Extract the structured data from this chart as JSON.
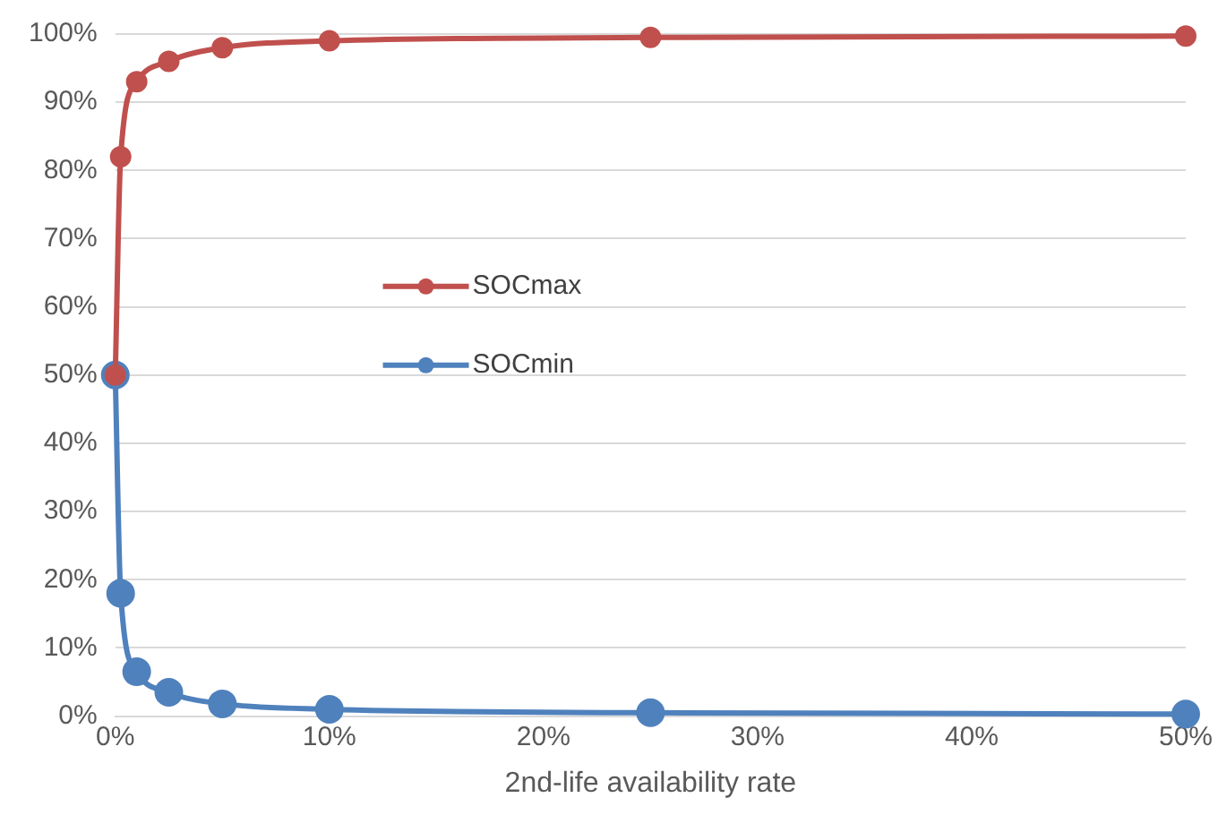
{
  "chart_data": {
    "type": "line",
    "xlabel": "2nd-life availability rate",
    "x": [
      0,
      0.25,
      1,
      2.5,
      5,
      10,
      25,
      50
    ],
    "series": [
      {
        "name": "SOCmax",
        "color": "#c0504d",
        "values": [
          50,
          82,
          93,
          96,
          98,
          99,
          99.5,
          99.7
        ]
      },
      {
        "name": "SOCmin",
        "color": "#4f81bd",
        "values": [
          50,
          18,
          6.5,
          3.5,
          1.8,
          1,
          0.5,
          0.3
        ]
      }
    ],
    "xlim": [
      0,
      50
    ],
    "xticks": [
      {
        "value": 0,
        "label": "0%"
      },
      {
        "value": 10,
        "label": "10%"
      },
      {
        "value": 20,
        "label": "20%"
      },
      {
        "value": 30,
        "label": "30%"
      },
      {
        "value": 40,
        "label": "40%"
      },
      {
        "value": 50,
        "label": "50%"
      }
    ],
    "ylim": [
      0,
      100
    ],
    "yticks": [
      {
        "value": 0,
        "label": "0%"
      },
      {
        "value": 10,
        "label": "10%"
      },
      {
        "value": 20,
        "label": "20%"
      },
      {
        "value": 30,
        "label": "30%"
      },
      {
        "value": 40,
        "label": "40%"
      },
      {
        "value": 50,
        "label": "50%"
      },
      {
        "value": 60,
        "label": "60%"
      },
      {
        "value": 70,
        "label": "70%"
      },
      {
        "value": 80,
        "label": "80%"
      },
      {
        "value": 90,
        "label": "90%"
      },
      {
        "value": 100,
        "label": "100%"
      }
    ],
    "grid": "y",
    "legend": "center",
    "marker": "circle",
    "line_style": "solid"
  }
}
